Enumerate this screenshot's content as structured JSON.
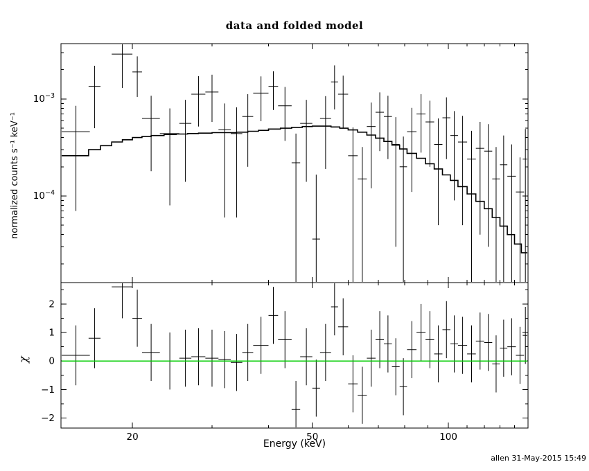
{
  "title": "data and folded model",
  "footer": "allen 31-May-2015 15:49",
  "chart_data": {
    "type": "scatter",
    "title": "data and folded model",
    "xlabel": "Energy (keV)",
    "x_scale": "log",
    "x_range": [
      13.9,
      150
    ],
    "x_major_ticks": [
      {
        "v": 20,
        "label": "20"
      },
      {
        "v": 50,
        "label": "50"
      },
      {
        "v": 100,
        "label": "100"
      }
    ],
    "x_minor_ticks": [
      30,
      40,
      60,
      70,
      80,
      90,
      110,
      120,
      130,
      140
    ],
    "colors": {
      "data": "#000000",
      "model": "#000000",
      "background": "#ffffff",
      "zero_line": "#00cc00"
    },
    "panels": {
      "top": {
        "ylabel": "normalized counts s⁻¹ keV⁻¹",
        "y_scale": "log",
        "y_range": [
          1.28e-05,
          0.00372
        ],
        "y_major_ticks": [
          {
            "v": 0.001,
            "base": "10",
            "exp": "−3"
          },
          {
            "v": 0.0001,
            "base": "10",
            "exp": "−4"
          }
        ],
        "model_step": {
          "edges": [
            13.9,
            16,
            17,
            18,
            19,
            20,
            21,
            22,
            23.5,
            25,
            26.5,
            28,
            30,
            32,
            34,
            36,
            38,
            40,
            42.5,
            45,
            47.5,
            50,
            52.5,
            55,
            57.5,
            60,
            63,
            66,
            69,
            72,
            75,
            78,
            81,
            85,
            89,
            93,
            97,
            101,
            105,
            110,
            115,
            120,
            125,
            130,
            135,
            140,
            145,
            150
          ],
          "values": [
            0.00026,
            0.0003,
            0.00033,
            0.00036,
            0.00038,
            0.0004,
            0.00041,
            0.00042,
            0.00043,
            0.000435,
            0.00044,
            0.000445,
            0.00045,
            0.00045,
            0.000455,
            0.000465,
            0.000475,
            0.00049,
            0.0005,
            0.00051,
            0.00052,
            0.000525,
            0.000525,
            0.000515,
            0.0005,
            0.00048,
            0.000455,
            0.000425,
            0.000395,
            0.000365,
            0.000335,
            0.000305,
            0.000275,
            0.000245,
            0.000215,
            0.00019,
            0.000165,
            0.000145,
            0.000125,
            0.000105,
            8.8e-05,
            7.4e-05,
            6e-05,
            4.9e-05,
            4e-05,
            3.2e-05,
            2.6e-05
          ]
        },
        "points": [
          [
            15.0,
            1.1,
            0.00046,
            0.00039
          ],
          [
            16.5,
            0.5,
            0.00135,
            0.00085
          ],
          [
            19.0,
            1.0,
            0.0029,
            0.0016
          ],
          [
            20.5,
            0.5,
            0.0019,
            0.00085
          ],
          [
            22.0,
            1.0,
            0.00063,
            0.00045
          ],
          [
            24.2,
            1.2,
            0.00044,
            0.00036
          ],
          [
            26.2,
            0.8,
            0.00056,
            0.00042
          ],
          [
            28.0,
            1.0,
            0.00112,
            0.0006
          ],
          [
            30.0,
            1.0,
            0.00118,
            0.0006
          ],
          [
            32.0,
            1.0,
            0.00048,
            0.00042
          ],
          [
            34.0,
            1.0,
            0.00044,
            0.00038
          ],
          [
            36.0,
            1.0,
            0.00066,
            0.00046
          ],
          [
            38.5,
            1.5,
            0.00115,
            0.00056
          ],
          [
            41.0,
            1.0,
            0.00135,
            0.00058
          ],
          [
            43.5,
            1.5,
            0.00085,
            0.00048
          ],
          [
            46.0,
            1.0,
            0.00022,
            0.00022
          ],
          [
            48.5,
            1.5,
            0.00056,
            0.00042
          ],
          [
            51.0,
            1.0,
            3.6e-05,
            0.00013
          ],
          [
            53.5,
            1.5,
            0.00063,
            0.00044
          ],
          [
            56.0,
            1.0,
            0.0015,
            0.00072
          ],
          [
            58.5,
            1.5,
            0.00112,
            0.00062
          ],
          [
            61.5,
            1.5,
            0.00026,
            0.00025
          ],
          [
            64.5,
            1.5,
            0.00015,
            0.00017
          ],
          [
            67.5,
            1.5,
            0.00052,
            0.0004
          ],
          [
            70.5,
            1.5,
            0.00073,
            0.00044
          ],
          [
            73.5,
            1.5,
            0.00066,
            0.00042
          ],
          [
            76.5,
            1.5,
            0.00034,
            0.00031
          ],
          [
            79.5,
            1.5,
            0.0002,
            0.00021
          ],
          [
            83.0,
            2.0,
            0.00046,
            0.00035
          ],
          [
            87.0,
            2.0,
            0.0007,
            0.00042
          ],
          [
            91.0,
            2.0,
            0.00058,
            0.00038
          ],
          [
            95.0,
            2.0,
            0.00034,
            0.00029
          ],
          [
            99.0,
            2.0,
            0.00064,
            0.0004
          ],
          [
            103.0,
            2.0,
            0.00042,
            0.00033
          ],
          [
            107.5,
            2.5,
            0.00036,
            0.00031
          ],
          [
            112.5,
            2.5,
            0.00024,
            0.00023
          ],
          [
            117.5,
            2.5,
            0.00031,
            0.00027
          ],
          [
            122.5,
            2.5,
            0.00029,
            0.00026
          ],
          [
            127.5,
            2.5,
            0.00015,
            0.00017
          ],
          [
            132.5,
            2.5,
            0.00021,
            0.00021
          ],
          [
            138.0,
            3.0,
            0.00016,
            0.00018
          ],
          [
            144.0,
            3.0,
            0.00011,
            0.00014
          ],
          [
            148.0,
            2.0,
            0.00024,
            0.00025
          ]
        ]
      },
      "bottom": {
        "ylabel": "χ",
        "y_scale": "linear",
        "y_range": [
          -2.35,
          2.75
        ],
        "y_major_ticks": [
          {
            "v": -2,
            "label": "−2"
          },
          {
            "v": -1,
            "label": "−1"
          },
          {
            "v": 0,
            "label": "0"
          },
          {
            "v": 1,
            "label": "1"
          },
          {
            "v": 2,
            "label": "2"
          }
        ],
        "zero_line": {
          "y": 0,
          "color": "#00cc00"
        },
        "points": [
          [
            15.0,
            1.1,
            0.2,
            1.05
          ],
          [
            16.5,
            0.5,
            0.8,
            1.05
          ],
          [
            19.0,
            1.0,
            2.6,
            1.1
          ],
          [
            20.5,
            0.5,
            1.5,
            1.0
          ],
          [
            22.0,
            1.0,
            0.3,
            1.0
          ],
          [
            24.2,
            1.2,
            0.0,
            1.0
          ],
          [
            26.2,
            0.8,
            0.1,
            1.0
          ],
          [
            28.0,
            1.0,
            0.15,
            1.0
          ],
          [
            30.0,
            1.0,
            0.1,
            1.0
          ],
          [
            32.0,
            1.0,
            0.05,
            1.0
          ],
          [
            34.0,
            1.0,
            -0.05,
            1.0
          ],
          [
            36.0,
            1.0,
            0.3,
            1.0
          ],
          [
            38.5,
            1.5,
            0.55,
            1.0
          ],
          [
            41.0,
            1.0,
            1.6,
            1.0
          ],
          [
            43.5,
            1.5,
            0.75,
            1.0
          ],
          [
            46.0,
            1.0,
            -1.7,
            1.0
          ],
          [
            48.5,
            1.5,
            0.15,
            1.0
          ],
          [
            51.0,
            1.0,
            -0.95,
            1.0
          ],
          [
            53.5,
            1.5,
            0.3,
            1.0
          ],
          [
            56.0,
            1.0,
            1.9,
            1.0
          ],
          [
            58.5,
            1.5,
            1.2,
            1.0
          ],
          [
            61.5,
            1.5,
            -0.8,
            1.0
          ],
          [
            64.5,
            1.5,
            -1.2,
            1.0
          ],
          [
            67.5,
            1.5,
            0.1,
            1.0
          ],
          [
            70.5,
            1.5,
            0.75,
            1.0
          ],
          [
            73.5,
            1.5,
            0.6,
            1.0
          ],
          [
            76.5,
            1.5,
            -0.2,
            1.0
          ],
          [
            79.5,
            1.5,
            -0.9,
            1.0
          ],
          [
            83.0,
            2.0,
            0.4,
            1.0
          ],
          [
            87.0,
            2.0,
            1.0,
            1.0
          ],
          [
            91.0,
            2.0,
            0.75,
            1.0
          ],
          [
            95.0,
            2.0,
            0.25,
            1.0
          ],
          [
            99.0,
            2.0,
            1.1,
            1.0
          ],
          [
            103.0,
            2.0,
            0.6,
            1.0
          ],
          [
            107.5,
            2.5,
            0.55,
            1.0
          ],
          [
            112.5,
            2.5,
            0.25,
            1.0
          ],
          [
            117.5,
            2.5,
            0.7,
            1.0
          ],
          [
            122.5,
            2.5,
            0.65,
            1.0
          ],
          [
            127.5,
            2.5,
            -0.1,
            1.0
          ],
          [
            132.5,
            2.5,
            0.45,
            1.0
          ],
          [
            138.0,
            3.0,
            0.5,
            1.0
          ],
          [
            144.0,
            3.0,
            0.2,
            1.0
          ],
          [
            148.0,
            2.0,
            0.9,
            1.0
          ]
        ]
      }
    }
  }
}
